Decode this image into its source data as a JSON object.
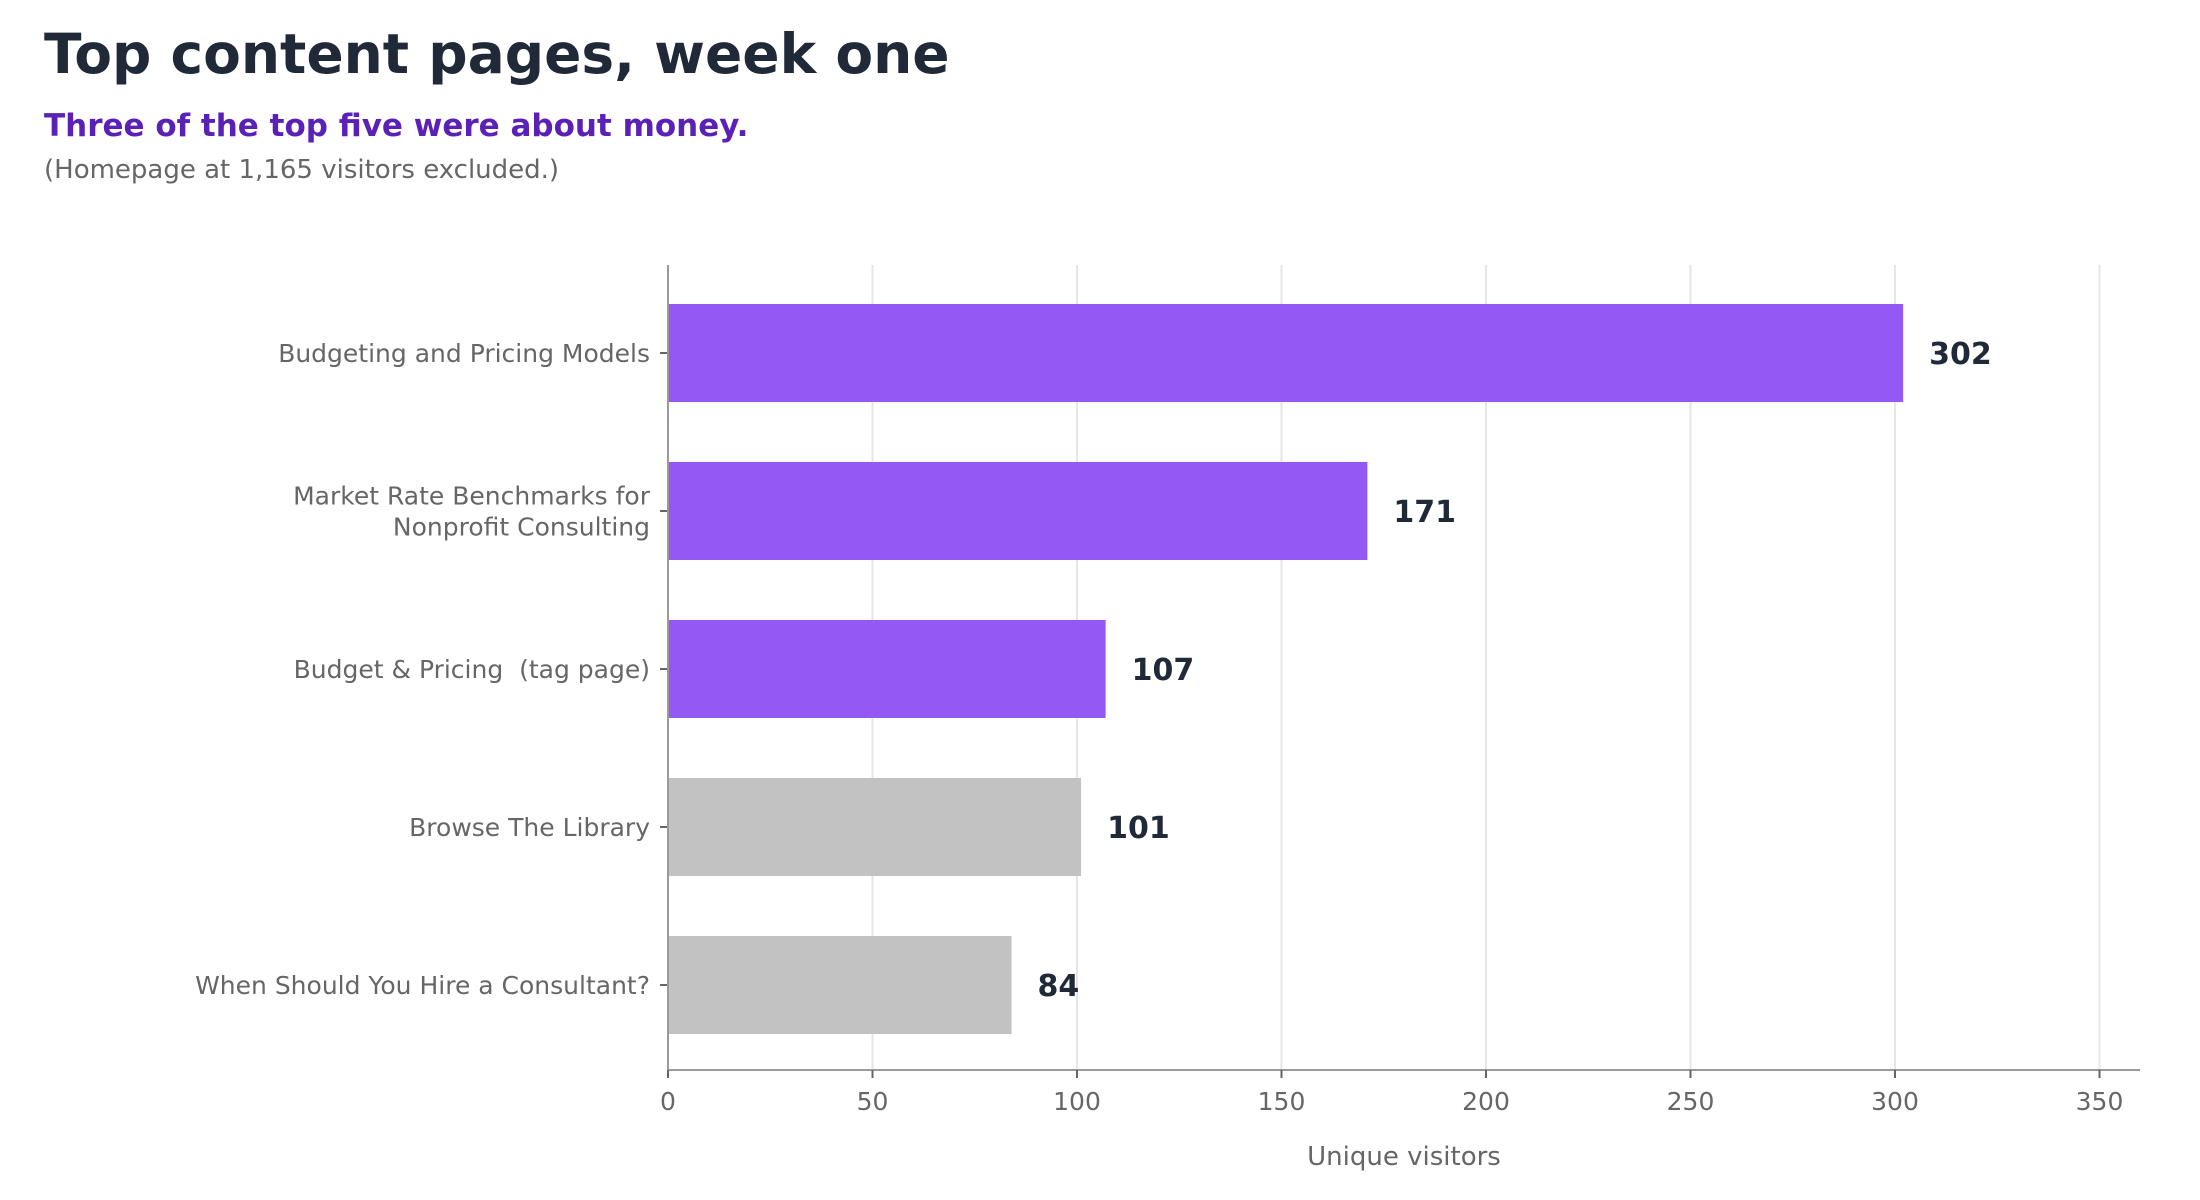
{
  "title": "Top content pages, week one",
  "subtitle": "Three of the top five were about money.",
  "note": "(Homepage at 1,165 visitors excluded.)",
  "colors": {
    "highlight": "#9359f2",
    "muted": "#c2c2c2",
    "title": "#1f2937",
    "subtitle": "#5b21b6",
    "axis_text": "#666666",
    "grid": "#e6e6e6",
    "value_label": "#1f2937"
  },
  "chart_data": {
    "type": "bar",
    "orientation": "horizontal",
    "title": "Top content pages, week one",
    "subtitle": "Three of the top five were about money.",
    "xlabel": "Unique visitors",
    "ylabel": "",
    "xlim": [
      0,
      360
    ],
    "x_ticks": [
      0,
      50,
      100,
      150,
      200,
      250,
      300,
      350
    ],
    "grid": "vertical",
    "categories": [
      [
        "Budgeting and Pricing Models"
      ],
      [
        "Market Rate Benchmarks for",
        "Nonprofit Consulting"
      ],
      [
        "Budget & Pricing  (tag page)"
      ],
      [
        "Browse The Library"
      ],
      [
        "When Should You Hire a Consultant?"
      ]
    ],
    "values": [
      302,
      171,
      107,
      101,
      84
    ],
    "highlighted": [
      true,
      true,
      true,
      false,
      false
    ]
  }
}
